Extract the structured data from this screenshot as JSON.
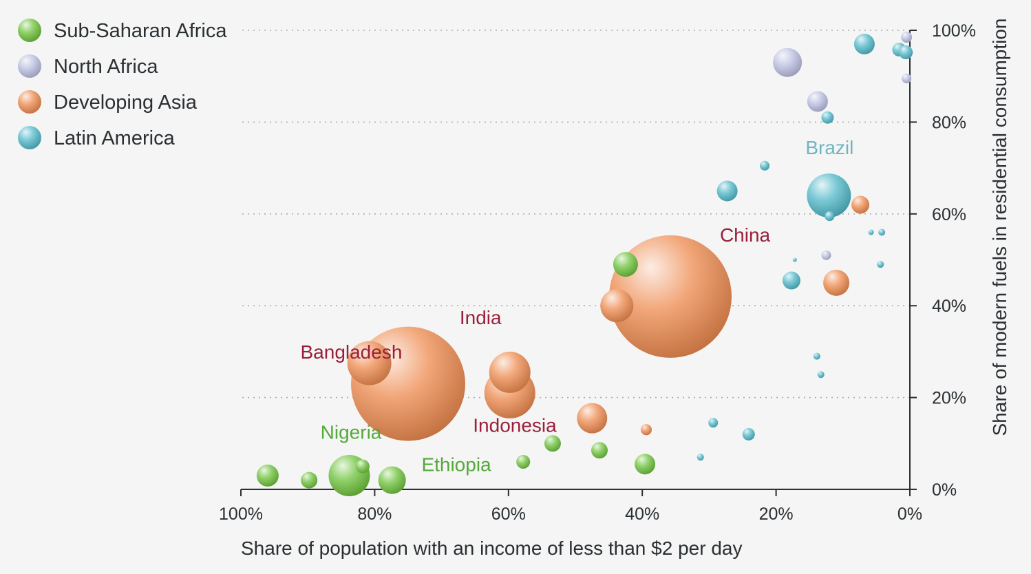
{
  "chart_data": {
    "type": "scatter",
    "title": "",
    "xlabel": "Share of population with an income of less than $2 per day",
    "ylabel": "Share of modern fuels in residential consumption",
    "xlim": [
      100,
      0
    ],
    "ylim": [
      0,
      100
    ],
    "x_reversed": true,
    "x_ticks": [
      "100%",
      "80%",
      "60%",
      "40%",
      "20%",
      "0%"
    ],
    "y_ticks": [
      "0%",
      "20%",
      "40%",
      "60%",
      "80%",
      "100%"
    ],
    "grid": "horizontal dotted",
    "legend": {
      "placement": "top-left",
      "entries": [
        {
          "name": "Sub-Saharan Africa",
          "color": "#6cc13a"
        },
        {
          "name": "North Africa",
          "color": "#b9bde0"
        },
        {
          "name": "Developing Asia",
          "color": "#ee8a4e"
        },
        {
          "name": "Latin America",
          "color": "#4fb7c8"
        }
      ]
    },
    "series": [
      {
        "name": "Sub-Saharan Africa",
        "color": "#6cc13a",
        "points": [
          {
            "x": 96,
            "y": 3,
            "size": 16
          },
          {
            "x": 89.8,
            "y": 2,
            "size": 12
          },
          {
            "x": 83.8,
            "y": 3,
            "size": 30
          },
          {
            "x": 81.8,
            "y": 5,
            "size": 10
          },
          {
            "x": 77.4,
            "y": 2,
            "size": 20
          },
          {
            "x": 57.8,
            "y": 6,
            "size": 10
          },
          {
            "x": 53.4,
            "y": 10,
            "size": 12
          },
          {
            "x": 46.4,
            "y": 8.5,
            "size": 12
          },
          {
            "x": 39.6,
            "y": 5.5,
            "size": 15
          },
          {
            "x": 42.5,
            "y": 49,
            "size": 18
          }
        ]
      },
      {
        "name": "North Africa",
        "color": "#b9bde0",
        "points": [
          {
            "x": 18.3,
            "y": 93,
            "size": 21
          },
          {
            "x": 13.8,
            "y": 84.5,
            "size": 15
          },
          {
            "x": 12.5,
            "y": 51,
            "size": 7
          },
          {
            "x": 0.5,
            "y": 98.5,
            "size": 8
          },
          {
            "x": 0.5,
            "y": 89.5,
            "size": 7
          }
        ]
      },
      {
        "name": "Developing Asia",
        "color": "#ee8a4e",
        "points": [
          {
            "x": 75,
            "y": 23,
            "size": 83
          },
          {
            "x": 80.8,
            "y": 27.5,
            "size": 32
          },
          {
            "x": 59.8,
            "y": 21,
            "size": 37
          },
          {
            "x": 59.8,
            "y": 25.5,
            "size": 30
          },
          {
            "x": 47.5,
            "y": 15.5,
            "size": 22
          },
          {
            "x": 39.4,
            "y": 13,
            "size": 8
          },
          {
            "x": 35.8,
            "y": 42,
            "size": 89
          },
          {
            "x": 43.8,
            "y": 40,
            "size": 24
          },
          {
            "x": 11,
            "y": 45,
            "size": 19
          },
          {
            "x": 7.4,
            "y": 62,
            "size": 13
          }
        ]
      },
      {
        "name": "Latin America",
        "color": "#4fb7c8",
        "points": [
          {
            "x": 12.1,
            "y": 64,
            "size": 32
          },
          {
            "x": 12,
            "y": 59.5,
            "size": 7
          },
          {
            "x": 6.8,
            "y": 97,
            "size": 15
          },
          {
            "x": 1.6,
            "y": 95.8,
            "size": 10
          },
          {
            "x": 0.6,
            "y": 95.2,
            "size": 10
          },
          {
            "x": 12.3,
            "y": 81,
            "size": 9
          },
          {
            "x": 21.7,
            "y": 70.5,
            "size": 7
          },
          {
            "x": 27.3,
            "y": 65,
            "size": 15
          },
          {
            "x": 17.7,
            "y": 45.5,
            "size": 13
          },
          {
            "x": 4.2,
            "y": 56,
            "size": 5
          },
          {
            "x": 5.8,
            "y": 56,
            "size": 4
          },
          {
            "x": 4.4,
            "y": 49,
            "size": 5
          },
          {
            "x": 17.2,
            "y": 50,
            "size": 3
          },
          {
            "x": 13.9,
            "y": 29,
            "size": 5
          },
          {
            "x": 13.3,
            "y": 25,
            "size": 5
          },
          {
            "x": 29.4,
            "y": 14.5,
            "size": 7
          },
          {
            "x": 24.1,
            "y": 12,
            "size": 9
          },
          {
            "x": 31.3,
            "y": 7,
            "size": 5
          }
        ]
      }
    ],
    "annotations": [
      {
        "text": "China",
        "x": 28.4,
        "y": 54,
        "color": "#9b1f3a"
      },
      {
        "text": "India",
        "x": 67.3,
        "y": 36,
        "color": "#9b1f3a"
      },
      {
        "text": "Bangladesh",
        "x": 91.1,
        "y": 28.5,
        "color": "#9b1f3a"
      },
      {
        "text": "Indonesia",
        "x": 65.3,
        "y": 12.5,
        "color": "#9b1f3a"
      },
      {
        "text": "Brazil",
        "x": 15.6,
        "y": 73,
        "color": "#6fb4c2"
      },
      {
        "text": "Nigeria",
        "x": 88.1,
        "y": 11,
        "color": "#55a83a"
      },
      {
        "text": "Ethiopia",
        "x": 73,
        "y": 4,
        "color": "#55a83a"
      }
    ]
  }
}
